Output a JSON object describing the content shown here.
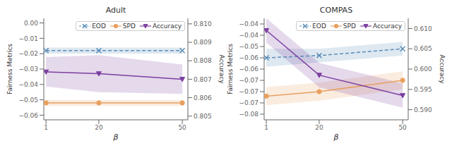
{
  "chart_data": [
    {
      "type": "line",
      "title": "Adult",
      "xlabel": "β",
      "ylabel": "Fairness Metrics",
      "y2label": "Accuracy",
      "x": [
        1,
        20,
        50
      ],
      "xlim": [
        0.2,
        52
      ],
      "xticks": [
        1,
        20,
        50
      ],
      "ylim": [
        -0.063,
        0.003
      ],
      "yticks": [
        {
          "value": 0.0,
          "label": "0.00"
        },
        {
          "value": -0.01,
          "label": "−0.01"
        },
        {
          "value": -0.02,
          "label": "−0.02"
        },
        {
          "value": -0.03,
          "label": "−0.03"
        },
        {
          "value": -0.04,
          "label": "−0.04"
        },
        {
          "value": -0.05,
          "label": "−0.05"
        },
        {
          "value": -0.06,
          "label": "−0.06"
        }
      ],
      "y2lim": [
        0.8048,
        0.8103
      ],
      "y2ticks": [
        0.805,
        0.806,
        0.807,
        0.808,
        0.809,
        {
          "value": 0.81,
          "label": "0.810"
        }
      ],
      "grid": false,
      "legend": "upper right",
      "series": [
        {
          "name": "EOD",
          "color": "#5B8DB8",
          "marker": "x",
          "line_style": "dashed",
          "values": [
            -0.018,
            -0.018,
            -0.018
          ],
          "band_lower": [
            -0.02,
            -0.02,
            -0.02
          ],
          "band_upper": [
            -0.016,
            -0.016,
            -0.016
          ]
        },
        {
          "name": "SPD",
          "color": "#E8A060",
          "marker": "o",
          "line_style": "solid",
          "values": [
            -0.052,
            -0.052,
            -0.052
          ],
          "band_lower": [
            -0.054,
            -0.054,
            -0.054
          ],
          "band_upper": [
            -0.05,
            -0.05,
            -0.05
          ]
        },
        {
          "name": "Accuracy",
          "color": "#7B3FA0",
          "marker": "v",
          "line_style": "solid",
          "axis": "y2",
          "values": [
            0.8074,
            0.8073,
            0.807
          ],
          "band_lower": [
            0.8066,
            0.8063,
            0.8062
          ],
          "band_upper": [
            0.8082,
            0.8083,
            0.8078
          ]
        }
      ]
    },
    {
      "type": "line",
      "title": "COMPAS",
      "xlabel": "β",
      "ylabel": "Fairness Metrics",
      "y2label": "Accuracy",
      "x": [
        1,
        20,
        50
      ],
      "xlim": [
        0.2,
        52
      ],
      "xticks": [
        1,
        20,
        50
      ],
      "ylim": [
        -0.0825,
        -0.0375
      ],
      "yticks": [
        {
          "value": -0.04,
          "label": "−0.04"
        },
        {
          "value": -0.045,
          "label": "−0.04"
        },
        {
          "value": -0.05,
          "label": "−0.05"
        },
        {
          "value": -0.055,
          "label": "−0.06"
        },
        {
          "value": -0.06,
          "label": "−0.06"
        },
        {
          "value": -0.065,
          "label": "−0.07"
        },
        {
          "value": -0.07,
          "label": "−0.07"
        },
        {
          "value": -0.075,
          "label": "−0.07"
        },
        {
          "value": -0.08,
          "label": "−0.08"
        }
      ],
      "y2lim": [
        0.5875,
        0.6125
      ],
      "y2ticks": [
        {
          "value": 0.59,
          "label": "0.590"
        },
        0.595,
        {
          "value": 0.6,
          "label": "0.600"
        },
        0.605,
        {
          "value": 0.61,
          "label": "0.610"
        }
      ],
      "grid": false,
      "legend": "upper right",
      "series": [
        {
          "name": "EOD",
          "color": "#5B8DB8",
          "marker": "x",
          "line_style": "dashed",
          "values": [
            -0.055,
            -0.054,
            -0.051
          ],
          "band_lower": [
            -0.059,
            -0.057,
            -0.054
          ],
          "band_upper": [
            -0.051,
            -0.051,
            -0.048
          ]
        },
        {
          "name": "SPD",
          "color": "#E8A060",
          "marker": "o",
          "line_style": "solid",
          "values": [
            -0.072,
            -0.07,
            -0.065
          ],
          "band_lower": [
            -0.076,
            -0.074,
            -0.069
          ],
          "band_upper": [
            -0.068,
            -0.066,
            -0.061
          ]
        },
        {
          "name": "Accuracy",
          "color": "#7B3FA0",
          "marker": "v",
          "line_style": "solid",
          "axis": "y2",
          "values": [
            0.6095,
            0.5985,
            0.5935
          ],
          "band_lower": [
            0.6065,
            0.5955,
            0.5905
          ],
          "band_upper": [
            0.6125,
            0.6015,
            0.5965
          ]
        }
      ]
    }
  ]
}
